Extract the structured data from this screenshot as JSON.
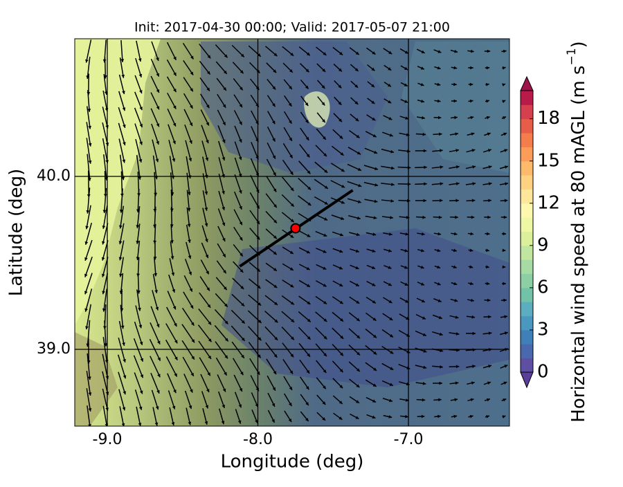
{
  "chart_data": {
    "type": "map",
    "title": "Init: 2017-04-30 00:00; Valid: 2017-05-07 21:00",
    "xlabel": "Longitude (deg)",
    "ylabel": "Latitude (deg)",
    "xlim": [
      -9.216,
      -6.329
    ],
    "ylim": [
      38.556,
      40.796
    ],
    "xticks": [
      {
        "value": -9,
        "label": "-9.0"
      },
      {
        "value": -8,
        "label": "-8.0"
      },
      {
        "value": -7,
        "label": "-7.0"
      }
    ],
    "yticks": [
      {
        "value": 39,
        "label": "39.0"
      },
      {
        "value": 40,
        "label": "40.0"
      }
    ],
    "grid": true,
    "transect": {
      "x": [
        -8.12,
        -7.37
      ],
      "y": [
        39.48,
        39.92
      ],
      "color": "#000000"
    },
    "point": {
      "x": -7.75,
      "y": 39.7,
      "color": "#ff0000"
    },
    "colorbar": {
      "label": "Horizontal wind speed at 80 mAGL (m s",
      "label_sup": "−1",
      "label_end": ")",
      "lim": [
        0,
        20
      ],
      "ticks": [
        0,
        3,
        6,
        9,
        12,
        15,
        18
      ],
      "colors": [
        "#5e4fa2",
        "#4a68ad",
        "#3f80b9",
        "#4a97c0",
        "#5cadbf",
        "#72c2a9",
        "#8ccfa4",
        "#a7dba4",
        "#c1e6a0",
        "#daf09a",
        "#eef7a4",
        "#fdf7b0",
        "#fee79a",
        "#fed281",
        "#fdba6a",
        "#fb9c58",
        "#f57d4b",
        "#e85d47",
        "#d6404e",
        "#b81b4a"
      ],
      "under": "#5a3f9a",
      "over": "#a0124a"
    }
  }
}
